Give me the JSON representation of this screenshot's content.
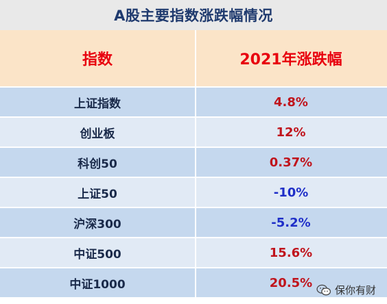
{
  "title": "A股主要指数涨跌幅情况",
  "table": {
    "headers": [
      "指数",
      "2021年涨跌幅"
    ],
    "rows": [
      {
        "name": "上证指数",
        "value": "4.8%",
        "sign": "pos"
      },
      {
        "name": "创业板",
        "value": "12%",
        "sign": "pos"
      },
      {
        "name": "科创50",
        "value": "0.37%",
        "sign": "pos"
      },
      {
        "name": "上证50",
        "value": "-10%",
        "sign": "neg"
      },
      {
        "name": "沪深300",
        "value": "-5.2%",
        "sign": "neg"
      },
      {
        "name": "中证500",
        "value": "15.6%",
        "sign": "pos"
      },
      {
        "name": "中证1000",
        "value": "20.5%",
        "sign": "pos"
      }
    ]
  },
  "colors": {
    "title": "#1f3a6e",
    "header_bg": "#fbe4c8",
    "header_text": "#e8000e",
    "row_odd": "#c5d8ee",
    "row_even": "#e1eaf5",
    "positive": "#c0141c",
    "negative": "#1f2fc8"
  },
  "watermark": {
    "icon": "wechat-icon",
    "text": "保你有财"
  }
}
